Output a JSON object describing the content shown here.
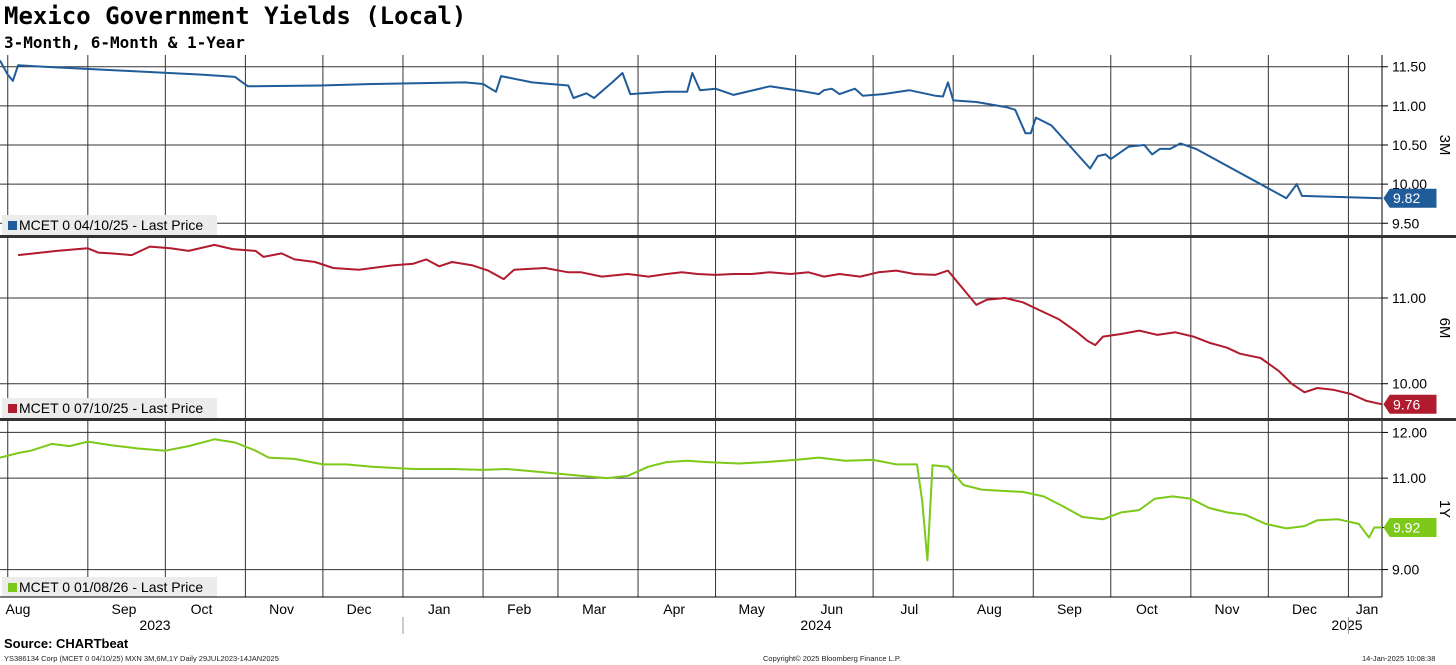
{
  "header": {
    "title": "Mexico Government Yields (Local)",
    "subtitle": "3-Month, 6-Month & 1-Year"
  },
  "source": "Source: CHARTbeat",
  "footer": {
    "left": "YS386134 Corp (MCET 0 04/10/25) MXN 3M,6M,1Y  Daily 29JUL2023-14JAN2025",
    "center": "Copyright© 2025 Bloomberg Finance L.P.",
    "right": "14-Jan-2025 10:08:38"
  },
  "chart_data": {
    "type": "line",
    "x_axis": {
      "months": [
        "Aug",
        "Sep",
        "Oct",
        "Nov",
        "Dec",
        "Jan",
        "Feb",
        "Mar",
        "Apr",
        "May",
        "Jun",
        "Jul",
        "Aug",
        "Sep",
        "Oct",
        "Nov",
        "Dec",
        "Jan"
      ],
      "years": [
        "2023",
        "2024",
        "2025"
      ],
      "range": [
        "2023-07-29",
        "2025-01-14"
      ]
    },
    "grid": true,
    "legend_placement": "bottom-left of each panel",
    "panels": [
      {
        "axis_label": "3M",
        "ylim": [
          9.35,
          11.65
        ],
        "yticks": [
          "11.50",
          "11.00",
          "10.50",
          "10.00",
          "9.50"
        ],
        "legend": "MCET 0 04/10/25 - Last Price",
        "last_value": "9.82",
        "color": "#1f5c99",
        "points": [
          [
            "2023-07-29",
            11.58
          ],
          [
            "2023-08-01",
            11.4
          ],
          [
            "2023-08-03",
            11.32
          ],
          [
            "2023-08-05",
            11.52
          ],
          [
            "2023-08-15",
            11.5
          ],
          [
            "2023-09-15",
            11.45
          ],
          [
            "2023-10-15",
            11.4
          ],
          [
            "2023-10-28",
            11.37
          ],
          [
            "2023-10-30",
            11.32
          ],
          [
            "2023-11-02",
            11.25
          ],
          [
            "2023-11-30",
            11.26
          ],
          [
            "2023-12-20",
            11.28
          ],
          [
            "2024-01-25",
            11.3
          ],
          [
            "2024-02-01",
            11.28
          ],
          [
            "2024-02-04",
            11.22
          ],
          [
            "2024-02-06",
            11.18
          ],
          [
            "2024-02-08",
            11.38
          ],
          [
            "2024-02-20",
            11.3
          ],
          [
            "2024-02-27",
            11.28
          ],
          [
            "2024-03-05",
            11.26
          ],
          [
            "2024-03-07",
            11.1
          ],
          [
            "2024-03-12",
            11.16
          ],
          [
            "2024-03-15",
            11.1
          ],
          [
            "2024-03-22",
            11.3
          ],
          [
            "2024-03-26",
            11.42
          ],
          [
            "2024-03-29",
            11.15
          ],
          [
            "2024-04-12",
            11.18
          ],
          [
            "2024-04-20",
            11.18
          ],
          [
            "2024-04-22",
            11.42
          ],
          [
            "2024-04-25",
            11.2
          ],
          [
            "2024-05-01",
            11.22
          ],
          [
            "2024-05-08",
            11.14
          ],
          [
            "2024-05-22",
            11.25
          ],
          [
            "2024-06-05",
            11.18
          ],
          [
            "2024-06-10",
            11.15
          ],
          [
            "2024-06-12",
            11.2
          ],
          [
            "2024-06-15",
            11.22
          ],
          [
            "2024-06-18",
            11.15
          ],
          [
            "2024-06-24",
            11.22
          ],
          [
            "2024-06-27",
            11.13
          ],
          [
            "2024-07-05",
            11.15
          ],
          [
            "2024-07-15",
            11.2
          ],
          [
            "2024-07-25",
            11.13
          ],
          [
            "2024-07-28",
            11.12
          ],
          [
            "2024-07-30",
            11.3
          ],
          [
            "2024-08-01",
            11.07
          ],
          [
            "2024-08-10",
            11.05
          ],
          [
            "2024-08-22",
            10.98
          ],
          [
            "2024-08-25",
            10.95
          ],
          [
            "2024-08-29",
            10.65
          ],
          [
            "2024-08-31",
            10.65
          ],
          [
            "2024-09-02",
            10.85
          ],
          [
            "2024-09-08",
            10.75
          ],
          [
            "2024-09-23",
            10.2
          ],
          [
            "2024-09-26",
            10.36
          ],
          [
            "2024-09-29",
            10.38
          ],
          [
            "2024-10-01",
            10.32
          ],
          [
            "2024-10-08",
            10.48
          ],
          [
            "2024-10-14",
            10.5
          ],
          [
            "2024-10-17",
            10.38
          ],
          [
            "2024-10-20",
            10.45
          ],
          [
            "2024-10-24",
            10.45
          ],
          [
            "2024-10-28",
            10.52
          ],
          [
            "2024-11-03",
            10.45
          ],
          [
            "2024-12-08",
            9.82
          ],
          [
            "2024-12-12",
            10.0
          ],
          [
            "2024-12-14",
            9.85
          ],
          [
            "2025-01-14",
            9.82
          ]
        ]
      },
      {
        "axis_label": "6M",
        "ylim": [
          9.6,
          11.7
        ],
        "yticks": [
          "11.00",
          "10.00"
        ],
        "legend": "MCET 0 07/10/25 - Last Price",
        "last_value": "9.76",
        "color": "#b01c2e",
        "points": [
          [
            "2023-08-05",
            11.5
          ],
          [
            "2023-08-20",
            11.55
          ],
          [
            "2023-09-01",
            11.58
          ],
          [
            "2023-09-05",
            11.53
          ],
          [
            "2023-09-10",
            11.52
          ],
          [
            "2023-09-18",
            11.5
          ],
          [
            "2023-09-25",
            11.6
          ],
          [
            "2023-10-03",
            11.58
          ],
          [
            "2023-10-10",
            11.55
          ],
          [
            "2023-10-20",
            11.62
          ],
          [
            "2023-10-27",
            11.57
          ],
          [
            "2023-11-05",
            11.55
          ],
          [
            "2023-11-08",
            11.48
          ],
          [
            "2023-11-15",
            11.52
          ],
          [
            "2023-11-20",
            11.45
          ],
          [
            "2023-11-28",
            11.42
          ],
          [
            "2023-12-05",
            11.35
          ],
          [
            "2023-12-15",
            11.33
          ],
          [
            "2023-12-28",
            11.38
          ],
          [
            "2024-01-05",
            11.4
          ],
          [
            "2024-01-10",
            11.45
          ],
          [
            "2024-01-15",
            11.37
          ],
          [
            "2024-01-20",
            11.42
          ],
          [
            "2024-01-28",
            11.38
          ],
          [
            "2024-02-03",
            11.32
          ],
          [
            "2024-02-09",
            11.22
          ],
          [
            "2024-02-13",
            11.33
          ],
          [
            "2024-02-25",
            11.35
          ],
          [
            "2024-03-05",
            11.3
          ],
          [
            "2024-03-10",
            11.3
          ],
          [
            "2024-03-18",
            11.25
          ],
          [
            "2024-03-28",
            11.28
          ],
          [
            "2024-04-05",
            11.25
          ],
          [
            "2024-04-12",
            11.28
          ],
          [
            "2024-04-18",
            11.3
          ],
          [
            "2024-04-24",
            11.28
          ],
          [
            "2024-05-01",
            11.27
          ],
          [
            "2024-05-08",
            11.28
          ],
          [
            "2024-05-15",
            11.28
          ],
          [
            "2024-05-22",
            11.3
          ],
          [
            "2024-05-30",
            11.28
          ],
          [
            "2024-06-06",
            11.3
          ],
          [
            "2024-06-12",
            11.25
          ],
          [
            "2024-06-18",
            11.28
          ],
          [
            "2024-06-26",
            11.25
          ],
          [
            "2024-07-03",
            11.3
          ],
          [
            "2024-07-10",
            11.32
          ],
          [
            "2024-07-17",
            11.28
          ],
          [
            "2024-07-25",
            11.27
          ],
          [
            "2024-07-30",
            11.32
          ],
          [
            "2024-08-05",
            11.1
          ],
          [
            "2024-08-10",
            10.92
          ],
          [
            "2024-08-14",
            10.98
          ],
          [
            "2024-08-21",
            11.0
          ],
          [
            "2024-08-28",
            10.95
          ],
          [
            "2024-09-04",
            10.85
          ],
          [
            "2024-09-11",
            10.75
          ],
          [
            "2024-09-18",
            10.6
          ],
          [
            "2024-09-22",
            10.5
          ],
          [
            "2024-09-25",
            10.45
          ],
          [
            "2024-09-28",
            10.55
          ],
          [
            "2024-10-05",
            10.58
          ],
          [
            "2024-10-12",
            10.62
          ],
          [
            "2024-10-19",
            10.57
          ],
          [
            "2024-10-26",
            10.6
          ],
          [
            "2024-11-02",
            10.55
          ],
          [
            "2024-11-08",
            10.48
          ],
          [
            "2024-11-15",
            10.42
          ],
          [
            "2024-11-20",
            10.35
          ],
          [
            "2024-11-28",
            10.3
          ],
          [
            "2024-12-05",
            10.15
          ],
          [
            "2024-12-10",
            10.0
          ],
          [
            "2024-12-15",
            9.9
          ],
          [
            "2024-12-20",
            9.95
          ],
          [
            "2024-12-26",
            9.93
          ],
          [
            "2025-01-02",
            9.88
          ],
          [
            "2025-01-08",
            9.8
          ],
          [
            "2025-01-14",
            9.76
          ]
        ]
      },
      {
        "axis_label": "1Y",
        "ylim": [
          8.4,
          12.25
        ],
        "yticks": [
          "12.00",
          "11.00",
          "9.92",
          "9.00"
        ],
        "legend": "MCET 0 01/08/26 - Last Price",
        "last_value": "9.92",
        "color": "#7cc919",
        "points": [
          [
            "2023-07-29",
            11.45
          ],
          [
            "2023-08-05",
            11.55
          ],
          [
            "2023-08-10",
            11.6
          ],
          [
            "2023-08-18",
            11.75
          ],
          [
            "2023-08-25",
            11.7
          ],
          [
            "2023-09-01",
            11.8
          ],
          [
            "2023-09-10",
            11.72
          ],
          [
            "2023-09-20",
            11.65
          ],
          [
            "2023-10-01",
            11.6
          ],
          [
            "2023-10-10",
            11.7
          ],
          [
            "2023-10-20",
            11.85
          ],
          [
            "2023-10-28",
            11.78
          ],
          [
            "2023-11-05",
            11.6
          ],
          [
            "2023-11-10",
            11.45
          ],
          [
            "2023-11-20",
            11.42
          ],
          [
            "2023-12-01",
            11.3
          ],
          [
            "2023-12-10",
            11.3
          ],
          [
            "2023-12-20",
            11.25
          ],
          [
            "2024-01-05",
            11.2
          ],
          [
            "2024-01-20",
            11.2
          ],
          [
            "2024-02-01",
            11.18
          ],
          [
            "2024-02-10",
            11.2
          ],
          [
            "2024-02-20",
            11.15
          ],
          [
            "2024-03-01",
            11.1
          ],
          [
            "2024-03-10",
            11.05
          ],
          [
            "2024-03-20",
            11.0
          ],
          [
            "2024-03-28",
            11.05
          ],
          [
            "2024-04-05",
            11.25
          ],
          [
            "2024-04-12",
            11.35
          ],
          [
            "2024-04-20",
            11.38
          ],
          [
            "2024-04-28",
            11.35
          ],
          [
            "2024-05-10",
            11.32
          ],
          [
            "2024-05-20",
            11.35
          ],
          [
            "2024-06-01",
            11.4
          ],
          [
            "2024-06-10",
            11.45
          ],
          [
            "2024-06-20",
            11.38
          ],
          [
            "2024-07-01",
            11.4
          ],
          [
            "2024-07-10",
            11.3
          ],
          [
            "2024-07-18",
            11.3
          ],
          [
            "2024-07-20",
            10.5
          ],
          [
            "2024-07-22",
            9.2
          ],
          [
            "2024-07-24",
            11.28
          ],
          [
            "2024-07-30",
            11.25
          ],
          [
            "2024-08-05",
            10.85
          ],
          [
            "2024-08-12",
            10.75
          ],
          [
            "2024-08-20",
            10.72
          ],
          [
            "2024-08-28",
            10.7
          ],
          [
            "2024-09-05",
            10.6
          ],
          [
            "2024-09-12",
            10.4
          ],
          [
            "2024-09-20",
            10.15
          ],
          [
            "2024-09-28",
            10.1
          ],
          [
            "2024-10-05",
            10.25
          ],
          [
            "2024-10-12",
            10.3
          ],
          [
            "2024-10-18",
            10.55
          ],
          [
            "2024-10-25",
            10.6
          ],
          [
            "2024-11-01",
            10.55
          ],
          [
            "2024-11-08",
            10.35
          ],
          [
            "2024-11-15",
            10.25
          ],
          [
            "2024-11-22",
            10.2
          ],
          [
            "2024-11-30",
            10.0
          ],
          [
            "2024-12-08",
            9.9
          ],
          [
            "2024-12-15",
            9.95
          ],
          [
            "2024-12-20",
            10.08
          ],
          [
            "2024-12-28",
            10.1
          ],
          [
            "2025-01-05",
            10.0
          ],
          [
            "2025-01-09",
            9.7
          ],
          [
            "2025-01-11",
            9.92
          ],
          [
            "2025-01-14",
            9.92
          ]
        ]
      }
    ]
  }
}
